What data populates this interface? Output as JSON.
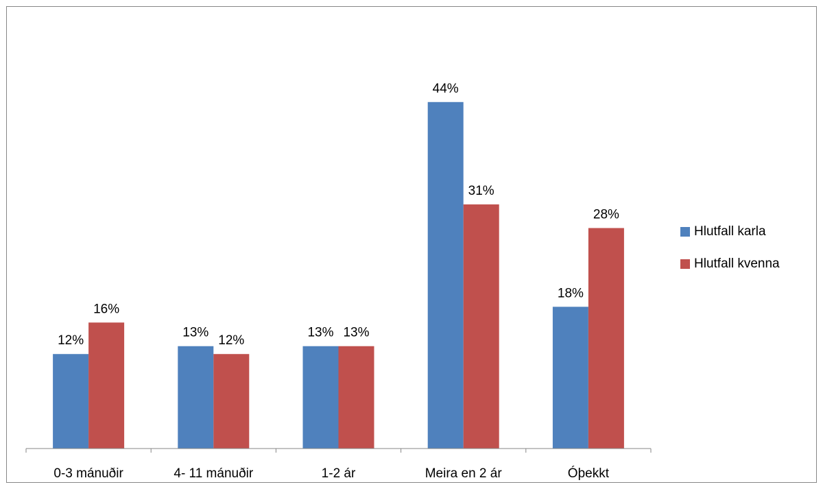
{
  "chart_data": {
    "type": "bar",
    "categories": [
      "0-3 mánuðir",
      "4- 11 mánuðir",
      "1-2 ár",
      "Meira en 2 ár",
      "Óþekkt"
    ],
    "series": [
      {
        "name": "Hlutfall karla",
        "values": [
          12,
          13,
          13,
          44,
          18
        ],
        "labels": [
          "12%",
          "13%",
          "13%",
          "44%",
          "18%"
        ],
        "color": "#4f81bd"
      },
      {
        "name": "Hlutfall kvenna",
        "values": [
          16,
          12,
          13,
          31,
          28
        ],
        "labels": [
          "16%",
          "12%",
          "13%",
          "31%",
          "28%"
        ],
        "color": "#c0504d"
      }
    ],
    "ylim": [
      0,
      53.3
    ],
    "legend_position": "right",
    "grid": false,
    "title": "",
    "xlabel": "",
    "ylabel": ""
  }
}
